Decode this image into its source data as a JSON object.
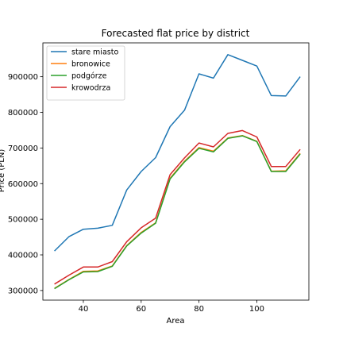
{
  "chart_data": {
    "type": "line",
    "title": "Forecasted flat price by district",
    "xlabel": "Area",
    "ylabel": "Price (PLN)",
    "xlim": [
      26,
      118
    ],
    "ylim": [
      273000,
      995000
    ],
    "x_ticks": [
      40,
      60,
      80,
      100
    ],
    "y_ticks": [
      300000,
      400000,
      500000,
      600000,
      700000,
      800000,
      900000
    ],
    "x_tick_labels": [
      "40",
      "60",
      "80",
      "100"
    ],
    "y_tick_labels": [
      "300000",
      "400000",
      "500000",
      "600000",
      "700000",
      "800000",
      "900000"
    ],
    "grid": false,
    "legend": "top-left",
    "x": [
      30,
      35,
      40,
      45,
      50,
      55,
      60,
      65,
      70,
      75,
      80,
      85,
      90,
      95,
      100,
      105,
      110,
      115
    ],
    "series": [
      {
        "name": "stare miasto",
        "color": "#1f77b4",
        "values": [
          411000,
          451000,
          472000,
          475000,
          483000,
          582000,
          634000,
          673000,
          760000,
          806000,
          908000,
          896000,
          962000,
          946000,
          930000,
          847000,
          846000,
          900000
        ]
      },
      {
        "name": "bronowice",
        "color": "#ff7f0e",
        "values": [
          306000,
          331000,
          354000,
          355000,
          369000,
          426000,
          463000,
          490000,
          615000,
          663000,
          701000,
          691000,
          728000,
          735000,
          719000,
          635000,
          636000,
          685000
        ]
      },
      {
        "name": "podgórze",
        "color": "#2ca02c",
        "values": [
          305000,
          330000,
          352000,
          353000,
          368000,
          425000,
          461000,
          489000,
          613000,
          661000,
          699000,
          689000,
          727000,
          734000,
          718000,
          634000,
          634000,
          683000
        ]
      },
      {
        "name": "krowodrza",
        "color": "#d62728",
        "values": [
          318000,
          343000,
          366000,
          366000,
          381000,
          437000,
          476000,
          503000,
          625000,
          672000,
          714000,
          703000,
          741000,
          749000,
          731000,
          648000,
          648000,
          696000
        ]
      }
    ]
  }
}
